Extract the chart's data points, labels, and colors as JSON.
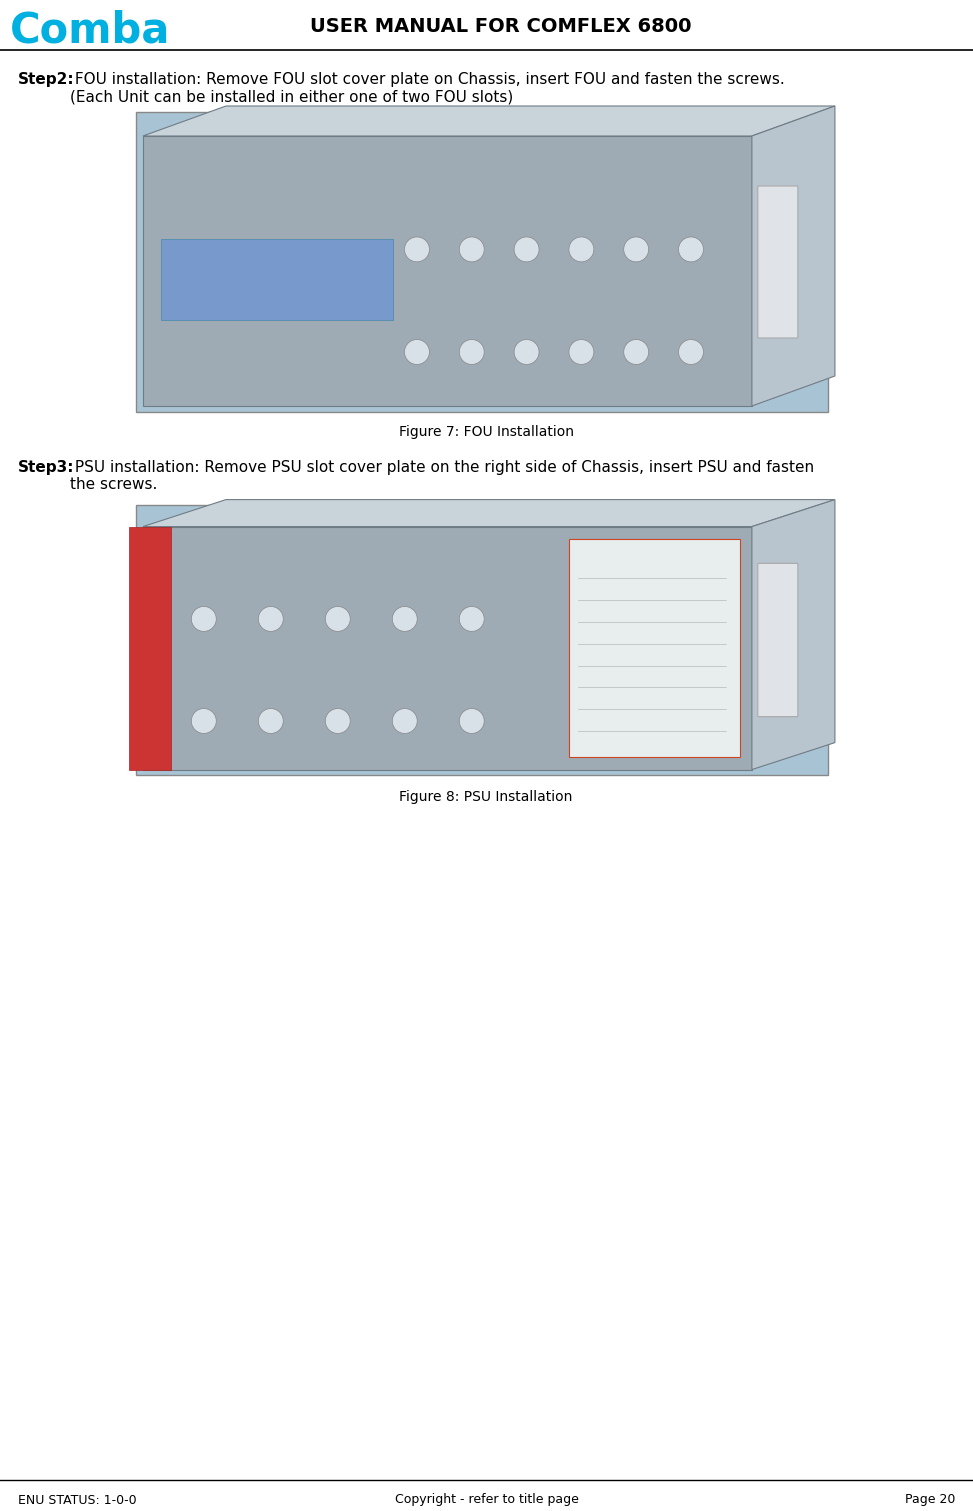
{
  "page_width": 9.73,
  "page_height": 15.11,
  "bg_color": "#ffffff",
  "logo_text": "Comba",
  "logo_color": "#00b0e0",
  "title_text": "USER MANUAL FOR COMFLEX 6800",
  "title_fontsize": 14,
  "title_fontweight": "bold",
  "step2_bold": "Step2:",
  "step2_rest": " FOU installation: Remove FOU slot cover plate on Chassis, insert FOU and fasten the screws.\n(Each Unit can be installed in either one of two FOU slots)",
  "step2_fontsize": 11,
  "fig7_caption": "Figure 7: FOU Installation",
  "fig7_caption_fontsize": 10,
  "step3_bold": "Step3:",
  "step3_rest": " PSU installation: Remove PSU slot cover plate on the right side of Chassis, insert PSU and fasten\nthe screws.",
  "step3_fontsize": 11,
  "fig8_caption": "Figure 8: PSU Installation",
  "fig8_caption_fontsize": 10,
  "footer_left": "ENU STATUS: 1-0-0",
  "footer_center": "Copyright - refer to title page",
  "footer_right": "Page 20",
  "footer_fontsize": 9,
  "separator_line_color": "#000000",
  "text_color": "#000000",
  "img_border_color": "#888888",
  "img_bg_color": "#b0bec5",
  "img_blue_bg": "#8fafc0",
  "chassis_color": "#9eaab4",
  "chassis_dark": "#707c85",
  "chassis_light": "#c8d4da",
  "blue_bg_color": "#a8c4d4"
}
